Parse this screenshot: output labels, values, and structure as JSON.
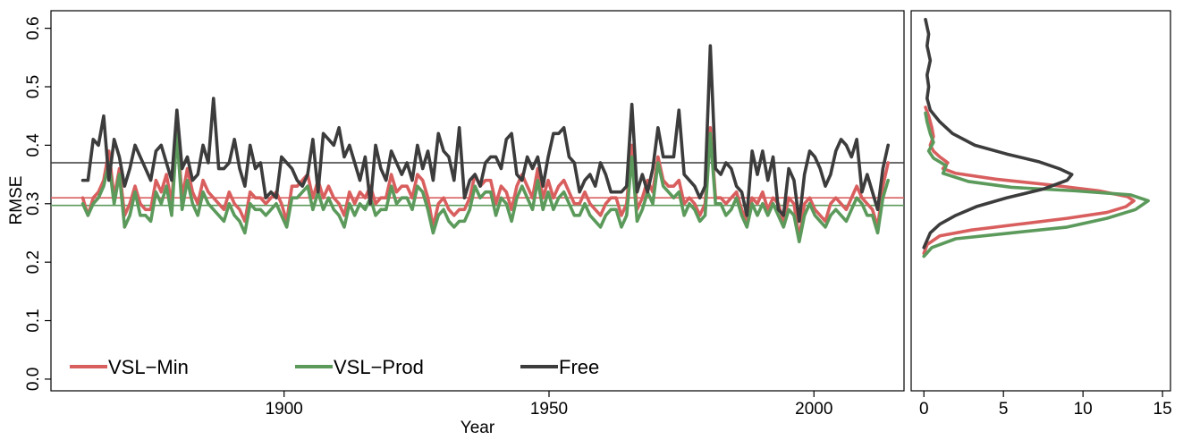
{
  "chart_data": [
    {
      "type": "line",
      "panel": "main",
      "title": "",
      "xlabel": "Year",
      "ylabel": "RMSE",
      "xlim": [
        1856,
        2017
      ],
      "ylim": [
        -0.02,
        0.63
      ],
      "x_ticks": [
        1900,
        1950,
        2000
      ],
      "y_ticks": [
        0.0,
        0.1,
        0.2,
        0.3,
        0.4,
        0.5,
        0.6
      ],
      "grid": false,
      "legend_position": "bottom-left",
      "x_start": 1862,
      "x_end": 2014,
      "series": [
        {
          "name": "VSL−Min",
          "color": "#d95f5f",
          "mean": 0.31,
          "values": [
            0.31,
            0.28,
            0.31,
            0.32,
            0.34,
            0.39,
            0.31,
            0.36,
            0.28,
            0.3,
            0.33,
            0.3,
            0.29,
            0.29,
            0.34,
            0.32,
            0.35,
            0.3,
            0.43,
            0.31,
            0.36,
            0.32,
            0.3,
            0.34,
            0.32,
            0.31,
            0.3,
            0.29,
            0.32,
            0.3,
            0.29,
            0.27,
            0.32,
            0.31,
            0.31,
            0.3,
            0.31,
            0.32,
            0.3,
            0.27,
            0.33,
            0.33,
            0.34,
            0.35,
            0.31,
            0.34,
            0.31,
            0.33,
            0.31,
            0.3,
            0.28,
            0.32,
            0.3,
            0.32,
            0.31,
            0.33,
            0.3,
            0.31,
            0.31,
            0.35,
            0.32,
            0.33,
            0.33,
            0.31,
            0.35,
            0.34,
            0.31,
            0.26,
            0.3,
            0.31,
            0.29,
            0.28,
            0.29,
            0.29,
            0.31,
            0.35,
            0.33,
            0.34,
            0.34,
            0.3,
            0.33,
            0.32,
            0.29,
            0.33,
            0.35,
            0.33,
            0.31,
            0.36,
            0.31,
            0.34,
            0.31,
            0.33,
            0.34,
            0.32,
            0.3,
            0.3,
            0.32,
            0.3,
            0.29,
            0.28,
            0.3,
            0.31,
            0.31,
            0.28,
            0.3,
            0.4,
            0.29,
            0.31,
            0.34,
            0.32,
            0.38,
            0.34,
            0.33,
            0.33,
            0.34,
            0.3,
            0.31,
            0.3,
            0.28,
            0.3,
            0.43,
            0.31,
            0.31,
            0.3,
            0.31,
            0.32,
            0.29,
            0.27,
            0.31,
            0.3,
            0.32,
            0.29,
            0.31,
            0.3,
            0.27,
            0.31,
            0.3,
            0.24,
            0.3,
            0.31,
            0.29,
            0.28,
            0.27,
            0.3,
            0.31,
            0.3,
            0.29,
            0.31,
            0.33,
            0.31,
            0.3,
            0.29,
            0.26,
            0.33,
            0.37
          ]
        },
        {
          "name": "VSL−Prod",
          "color": "#5c9a5c",
          "mean": 0.297,
          "values": [
            0.3,
            0.28,
            0.3,
            0.31,
            0.33,
            0.37,
            0.3,
            0.35,
            0.26,
            0.28,
            0.32,
            0.28,
            0.28,
            0.27,
            0.32,
            0.3,
            0.33,
            0.28,
            0.42,
            0.29,
            0.34,
            0.3,
            0.28,
            0.32,
            0.3,
            0.29,
            0.28,
            0.27,
            0.3,
            0.28,
            0.27,
            0.25,
            0.3,
            0.29,
            0.29,
            0.28,
            0.29,
            0.3,
            0.28,
            0.26,
            0.31,
            0.31,
            0.32,
            0.33,
            0.29,
            0.32,
            0.29,
            0.31,
            0.29,
            0.28,
            0.26,
            0.3,
            0.28,
            0.3,
            0.29,
            0.31,
            0.28,
            0.29,
            0.29,
            0.33,
            0.3,
            0.31,
            0.31,
            0.29,
            0.33,
            0.32,
            0.29,
            0.25,
            0.28,
            0.29,
            0.27,
            0.26,
            0.27,
            0.27,
            0.29,
            0.33,
            0.31,
            0.32,
            0.32,
            0.28,
            0.31,
            0.3,
            0.27,
            0.31,
            0.33,
            0.31,
            0.29,
            0.34,
            0.29,
            0.32,
            0.29,
            0.31,
            0.32,
            0.3,
            0.28,
            0.28,
            0.3,
            0.28,
            0.27,
            0.26,
            0.28,
            0.29,
            0.29,
            0.26,
            0.28,
            0.38,
            0.27,
            0.29,
            0.32,
            0.3,
            0.37,
            0.33,
            0.32,
            0.31,
            0.32,
            0.28,
            0.3,
            0.29,
            0.27,
            0.28,
            0.42,
            0.3,
            0.3,
            0.28,
            0.29,
            0.31,
            0.28,
            0.26,
            0.3,
            0.28,
            0.3,
            0.28,
            0.3,
            0.28,
            0.26,
            0.29,
            0.28,
            0.235,
            0.28,
            0.3,
            0.28,
            0.27,
            0.26,
            0.28,
            0.29,
            0.28,
            0.27,
            0.29,
            0.31,
            0.3,
            0.28,
            0.28,
            0.25,
            0.31,
            0.34
          ]
        },
        {
          "name": "Free",
          "color": "#3c3c3c",
          "mean": 0.37,
          "values": [
            0.34,
            0.34,
            0.41,
            0.4,
            0.45,
            0.34,
            0.41,
            0.38,
            0.33,
            0.36,
            0.4,
            0.38,
            0.36,
            0.34,
            0.39,
            0.4,
            0.37,
            0.34,
            0.46,
            0.36,
            0.38,
            0.34,
            0.35,
            0.4,
            0.37,
            0.48,
            0.36,
            0.36,
            0.37,
            0.41,
            0.36,
            0.33,
            0.4,
            0.36,
            0.37,
            0.31,
            0.32,
            0.31,
            0.38,
            0.37,
            0.36,
            0.34,
            0.33,
            0.35,
            0.41,
            0.32,
            0.42,
            0.41,
            0.4,
            0.43,
            0.38,
            0.4,
            0.37,
            0.34,
            0.38,
            0.3,
            0.4,
            0.36,
            0.34,
            0.39,
            0.37,
            0.35,
            0.37,
            0.34,
            0.4,
            0.36,
            0.39,
            0.34,
            0.42,
            0.39,
            0.38,
            0.34,
            0.43,
            0.31,
            0.34,
            0.35,
            0.33,
            0.37,
            0.38,
            0.38,
            0.36,
            0.41,
            0.42,
            0.35,
            0.34,
            0.38,
            0.36,
            0.38,
            0.33,
            0.38,
            0.42,
            0.42,
            0.43,
            0.38,
            0.37,
            0.32,
            0.34,
            0.35,
            0.33,
            0.37,
            0.35,
            0.32,
            0.32,
            0.32,
            0.33,
            0.47,
            0.32,
            0.35,
            0.32,
            0.36,
            0.43,
            0.38,
            0.38,
            0.38,
            0.46,
            0.35,
            0.34,
            0.33,
            0.31,
            0.33,
            0.57,
            0.36,
            0.35,
            0.37,
            0.36,
            0.33,
            0.32,
            0.28,
            0.39,
            0.35,
            0.39,
            0.34,
            0.38,
            0.29,
            0.28,
            0.36,
            0.34,
            0.27,
            0.35,
            0.39,
            0.38,
            0.36,
            0.33,
            0.35,
            0.39,
            0.41,
            0.4,
            0.38,
            0.41,
            0.32,
            0.35,
            0.32,
            0.29,
            0.36,
            0.4
          ]
        }
      ]
    },
    {
      "type": "line",
      "panel": "density",
      "title": "",
      "xlabel": "",
      "ylabel": "",
      "xlim": [
        -0.8,
        15.5
      ],
      "x_ticks": [
        0,
        5,
        10,
        15
      ],
      "grid": false,
      "series": [
        {
          "name": "VSL−Min",
          "color": "#d95f5f",
          "points": [
            [
              0.0,
              0.215
            ],
            [
              0.2,
              0.23
            ],
            [
              1.0,
              0.245
            ],
            [
              3.0,
              0.255
            ],
            [
              6.0,
              0.265
            ],
            [
              9.0,
              0.275
            ],
            [
              11.5,
              0.285
            ],
            [
              12.7,
              0.295
            ],
            [
              13.2,
              0.305
            ],
            [
              12.8,
              0.312
            ],
            [
              11.0,
              0.322
            ],
            [
              8.0,
              0.332
            ],
            [
              4.5,
              0.342
            ],
            [
              2.0,
              0.352
            ],
            [
              1.2,
              0.36
            ],
            [
              1.5,
              0.37
            ],
            [
              1.0,
              0.38
            ],
            [
              0.6,
              0.39
            ],
            [
              0.4,
              0.4
            ],
            [
              0.6,
              0.415
            ],
            [
              0.5,
              0.43
            ],
            [
              0.3,
              0.45
            ],
            [
              0.1,
              0.465
            ]
          ]
        },
        {
          "name": "VSL−Prod",
          "color": "#5c9a5c",
          "points": [
            [
              0.0,
              0.21
            ],
            [
              0.5,
              0.225
            ],
            [
              2.0,
              0.24
            ],
            [
              5.5,
              0.25
            ],
            [
              9.0,
              0.26
            ],
            [
              11.5,
              0.275
            ],
            [
              13.3,
              0.29
            ],
            [
              14.1,
              0.305
            ],
            [
              13.0,
              0.315
            ],
            [
              9.5,
              0.322
            ],
            [
              5.5,
              0.328
            ],
            [
              2.8,
              0.338
            ],
            [
              1.2,
              0.352
            ],
            [
              1.4,
              0.365
            ],
            [
              0.6,
              0.378
            ],
            [
              0.3,
              0.39
            ],
            [
              0.6,
              0.405
            ],
            [
              0.4,
              0.42
            ],
            [
              0.2,
              0.44
            ],
            [
              0.1,
              0.455
            ]
          ]
        },
        {
          "name": "Free",
          "color": "#3c3c3c",
          "points": [
            [
              0.0,
              0.225
            ],
            [
              0.4,
              0.25
            ],
            [
              1.0,
              0.265
            ],
            [
              2.0,
              0.28
            ],
            [
              3.3,
              0.295
            ],
            [
              5.2,
              0.31
            ],
            [
              7.5,
              0.325
            ],
            [
              9.0,
              0.34
            ],
            [
              9.3,
              0.35
            ],
            [
              8.5,
              0.36
            ],
            [
              7.2,
              0.372
            ],
            [
              5.2,
              0.385
            ],
            [
              3.2,
              0.4
            ],
            [
              1.8,
              0.42
            ],
            [
              1.0,
              0.44
            ],
            [
              0.4,
              0.46
            ],
            [
              0.2,
              0.48
            ],
            [
              0.3,
              0.5
            ],
            [
              0.2,
              0.52
            ],
            [
              0.4,
              0.545
            ],
            [
              0.2,
              0.57
            ],
            [
              0.3,
              0.59
            ],
            [
              0.1,
              0.615
            ]
          ]
        }
      ]
    }
  ]
}
